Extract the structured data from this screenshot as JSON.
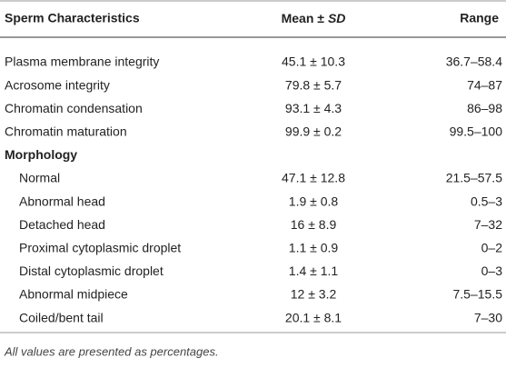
{
  "table": {
    "header": [
      "Sperm Characteristics",
      [
        "Mean ±",
        "SD"
      ],
      "Range"
    ],
    "rows": [
      [
        "Plasma membrane integrity",
        "45.1 ± 10.3",
        "36.7–58.4"
      ],
      [
        "Acrosome integrity",
        "79.8 ± 5.7",
        "74–87"
      ],
      [
        "Chromatin condensation",
        "93.1 ± 4.3",
        "86–98"
      ],
      [
        "Chromatin maturation",
        "99.9 ± 0.2",
        "99.5–100"
      ],
      [
        "Morphology"
      ],
      [
        "Normal",
        "47.1 ± 12.8",
        "21.5–57.5"
      ],
      [
        "Abnormal head",
        "1.9 ± 0.8",
        "0.5–3"
      ],
      [
        "Detached head",
        "16 ± 8.9",
        "7–32"
      ],
      [
        "Proximal cytoplasmic droplet",
        "1.1 ± 0.9",
        "0–2"
      ],
      [
        "Distal cytoplasmic droplet",
        "1.4 ± 1.1",
        "0–3"
      ],
      [
        "Abnormal midpiece",
        "12 ± 3.2",
        "7.5–15.5"
      ],
      [
        "Coiled/bent tail",
        "20.1 ± 8.1",
        "7–30"
      ]
    ],
    "note": "All values are presented as percentages."
  }
}
